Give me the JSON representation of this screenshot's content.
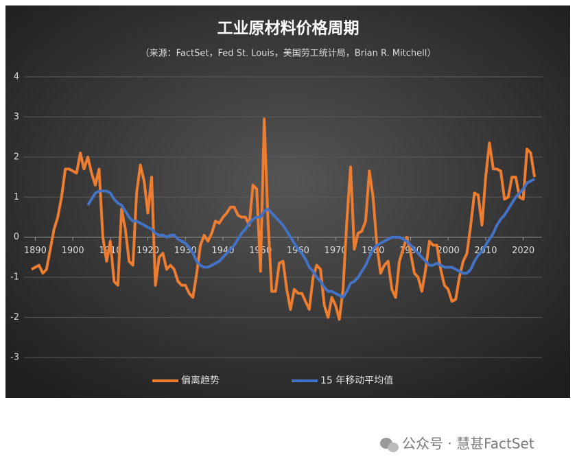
{
  "chart_data": {
    "type": "line",
    "title": "工业原材料价格周期",
    "subtitle": "（来源：FactSet，Fed St. Louis，美国劳工统计局，Brian R. Mitchell）",
    "watermark": "公众号 · 慧甚FactSet",
    "x": [
      1889,
      1890,
      1891,
      1892,
      1893,
      1894,
      1895,
      1896,
      1897,
      1898,
      1899,
      1900,
      1901,
      1902,
      1903,
      1904,
      1905,
      1906,
      1907,
      1908,
      1909,
      1910,
      1911,
      1912,
      1913,
      1914,
      1915,
      1916,
      1917,
      1918,
      1919,
      1920,
      1921,
      1922,
      1923,
      1924,
      1925,
      1926,
      1927,
      1928,
      1929,
      1930,
      1931,
      1932,
      1933,
      1934,
      1935,
      1936,
      1937,
      1938,
      1939,
      1940,
      1941,
      1942,
      1943,
      1944,
      1945,
      1946,
      1947,
      1948,
      1949,
      1950,
      1951,
      1952,
      1953,
      1954,
      1955,
      1956,
      1957,
      1958,
      1959,
      1960,
      1961,
      1962,
      1963,
      1964,
      1965,
      1966,
      1967,
      1968,
      1969,
      1970,
      1971,
      1972,
      1973,
      1974,
      1975,
      1976,
      1977,
      1978,
      1979,
      1980,
      1981,
      1982,
      1983,
      1984,
      1985,
      1986,
      1987,
      1988,
      1989,
      1990,
      1991,
      1992,
      1993,
      1994,
      1995,
      1996,
      1997,
      1998,
      1999,
      2000,
      2001,
      2002,
      2003,
      2004,
      2005,
      2006,
      2007,
      2008,
      2009,
      2010,
      2011,
      2012,
      2013,
      2014,
      2015,
      2016,
      2017,
      2018,
      2019,
      2020,
      2021,
      2022,
      2023
    ],
    "series": [
      {
        "name": "偏离趋势",
        "color": "#ed7d31",
        "values": [
          -0.8,
          -0.75,
          -0.7,
          -0.9,
          -0.8,
          -0.3,
          0.2,
          0.5,
          1.0,
          1.7,
          1.7,
          1.65,
          1.6,
          2.1,
          1.7,
          2.0,
          1.6,
          1.3,
          1.7,
          0.0,
          -0.6,
          -0.1,
          -1.1,
          -1.2,
          0.7,
          0.2,
          -0.6,
          -0.7,
          1.1,
          1.8,
          1.4,
          0.6,
          1.5,
          -1.2,
          -0.5,
          -0.4,
          -0.8,
          -0.7,
          -0.8,
          -1.1,
          -1.2,
          -1.2,
          -1.4,
          -1.5,
          -0.9,
          -0.2,
          0.05,
          -0.1,
          0.1,
          0.4,
          0.35,
          0.5,
          0.6,
          0.75,
          0.75,
          0.55,
          0.5,
          0.5,
          0.3,
          1.3,
          1.2,
          -0.85,
          2.95,
          0.4,
          -1.35,
          -1.35,
          -0.65,
          -0.6,
          -1.3,
          -1.8,
          -1.3,
          -1.4,
          -1.4,
          -1.6,
          -1.8,
          -1.0,
          -0.7,
          -0.8,
          -1.7,
          -2.0,
          -1.5,
          -1.7,
          -2.05,
          -1.3,
          0.4,
          1.75,
          -0.3,
          0.1,
          0.15,
          0.4,
          1.65,
          1.0,
          -0.2,
          -0.9,
          -0.7,
          -0.6,
          -1.3,
          -1.5,
          -0.6,
          -0.3,
          0.0,
          -0.4,
          -0.9,
          -1.0,
          -1.35,
          -0.8,
          -0.1,
          -0.2,
          -0.2,
          -0.8,
          -1.2,
          -1.3,
          -1.6,
          -1.55,
          -1.0,
          -0.6,
          -0.4,
          0.3,
          1.1,
          1.05,
          0.3,
          1.5,
          2.35,
          1.7,
          1.7,
          1.65,
          0.95,
          1.0,
          1.5,
          1.5,
          1.0,
          0.95,
          2.2,
          2.1,
          1.5
        ]
      },
      {
        "name": "15 年移动平均值",
        "color": "#4472c4",
        "values": [
          null,
          null,
          null,
          null,
          null,
          null,
          null,
          null,
          null,
          null,
          null,
          null,
          null,
          null,
          null,
          0.8,
          0.95,
          1.1,
          1.15,
          1.15,
          1.15,
          1.1,
          0.95,
          0.85,
          0.8,
          0.65,
          0.5,
          0.4,
          0.4,
          0.35,
          0.3,
          0.25,
          0.2,
          0.1,
          0.05,
          0.05,
          0.0,
          0.05,
          0.05,
          -0.05,
          -0.1,
          -0.15,
          -0.25,
          -0.4,
          -0.6,
          -0.7,
          -0.75,
          -0.75,
          -0.7,
          -0.65,
          -0.6,
          -0.5,
          -0.4,
          -0.3,
          -0.2,
          -0.05,
          0.1,
          0.2,
          0.35,
          0.45,
          0.5,
          0.5,
          0.65,
          0.7,
          0.6,
          0.5,
          0.4,
          0.3,
          0.15,
          0.0,
          -0.15,
          -0.3,
          -0.4,
          -0.55,
          -0.75,
          -0.85,
          -1.0,
          -1.1,
          -1.25,
          -1.35,
          -1.35,
          -1.4,
          -1.45,
          -1.5,
          -1.35,
          -1.15,
          -1.1,
          -1.0,
          -0.85,
          -0.7,
          -0.5,
          -0.3,
          -0.2,
          -0.15,
          -0.1,
          -0.05,
          0.0,
          0.0,
          0.0,
          -0.05,
          -0.1,
          -0.2,
          -0.3,
          -0.4,
          -0.5,
          -0.6,
          -0.7,
          -0.7,
          -0.65,
          -0.7,
          -0.75,
          -0.75,
          -0.75,
          -0.8,
          -0.85,
          -0.9,
          -0.9,
          -0.8,
          -0.6,
          -0.45,
          -0.35,
          -0.2,
          -0.05,
          0.1,
          0.3,
          0.45,
          0.55,
          0.7,
          0.85,
          1.0,
          1.1,
          1.2,
          1.35,
          1.4,
          1.45
        ]
      }
    ],
    "xlim": [
      1887,
      2025
    ],
    "xticks": [
      1890,
      1900,
      1910,
      1920,
      1930,
      1940,
      1950,
      1960,
      1970,
      1980,
      1990,
      2000,
      2010,
      2020
    ],
    "ylim": [
      -3,
      4
    ],
    "yticks": [
      -3,
      -2,
      -1,
      0,
      1,
      2,
      3,
      4
    ],
    "grid": true,
    "legend": "bottom"
  }
}
